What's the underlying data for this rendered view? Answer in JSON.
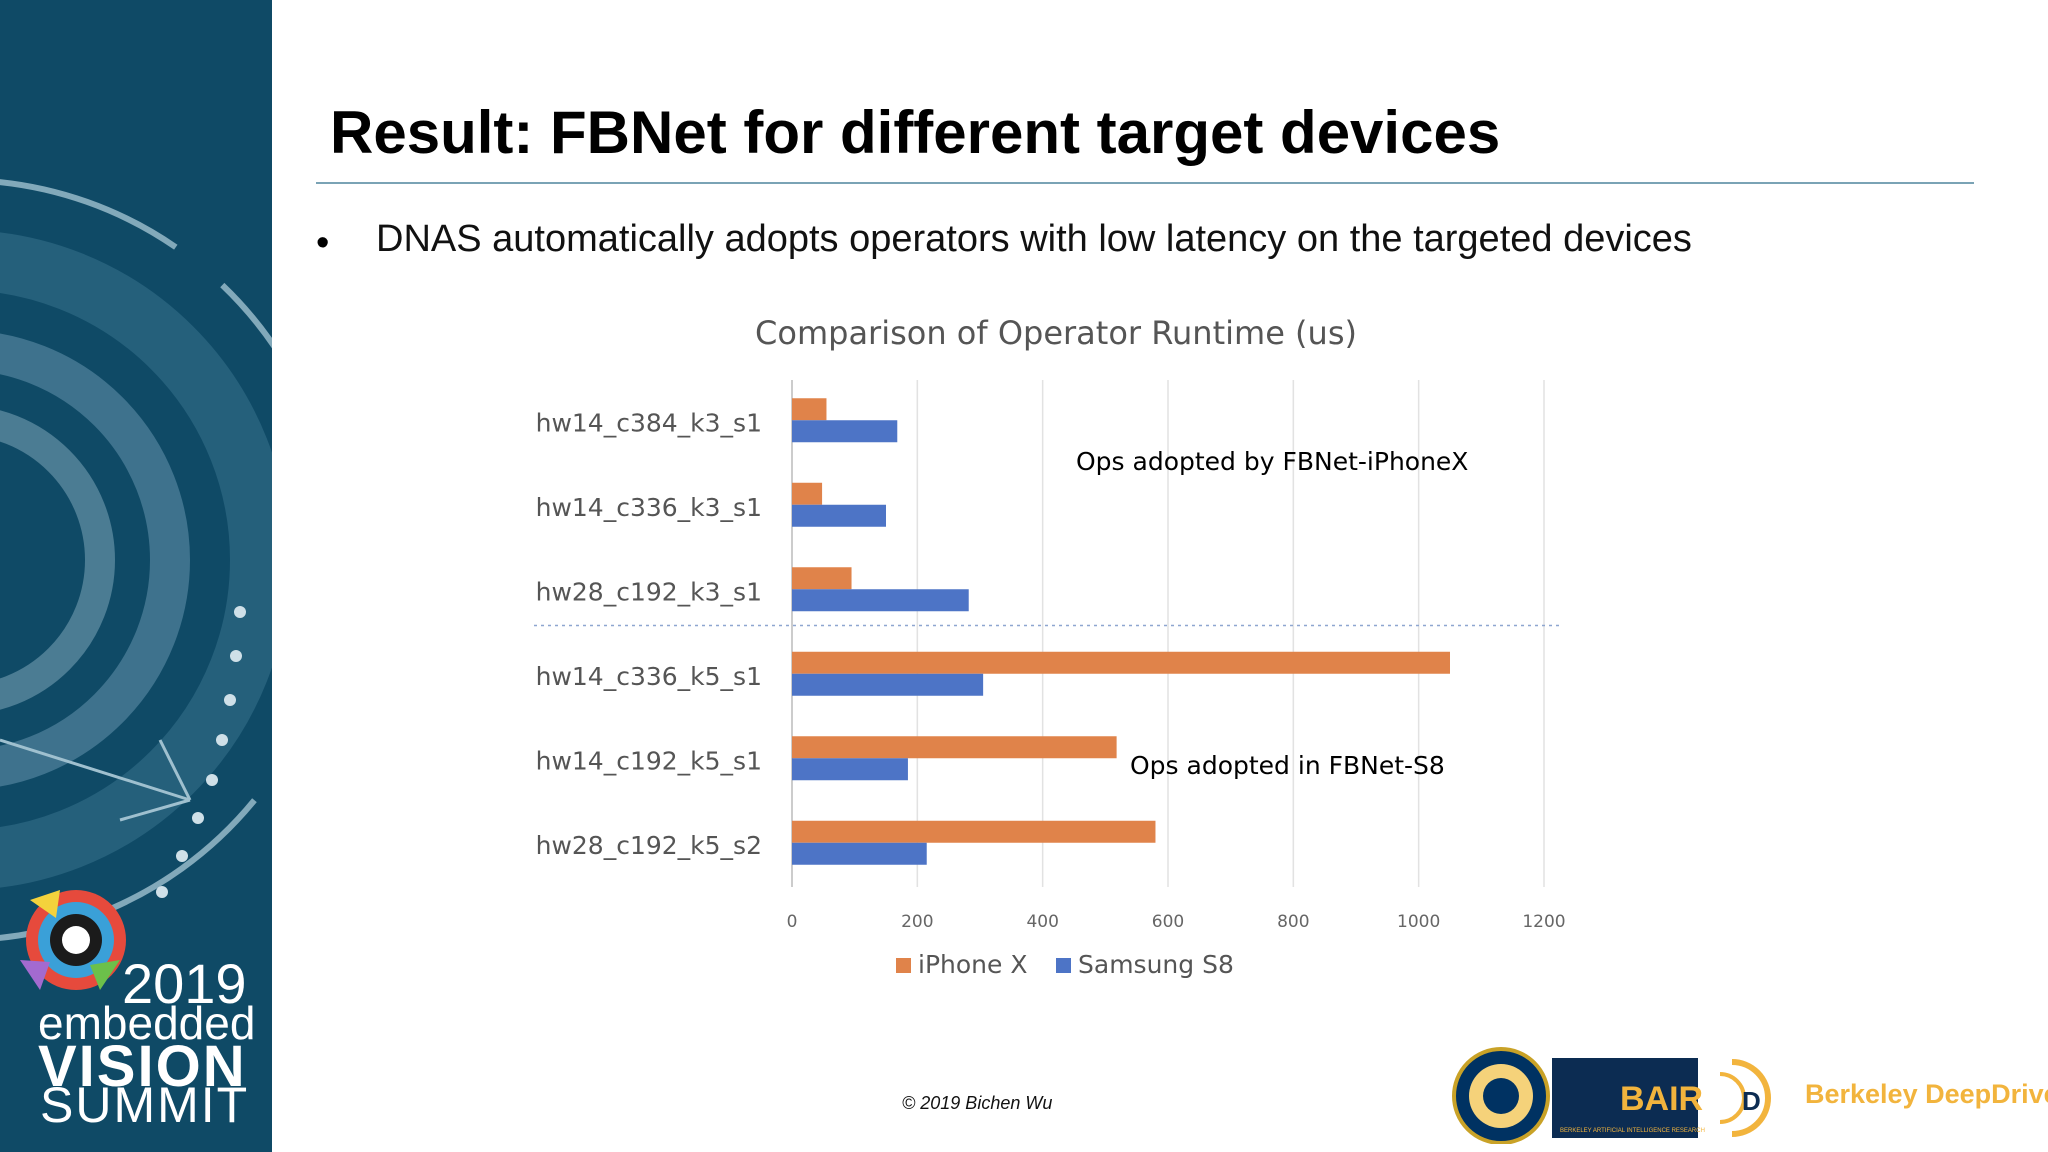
{
  "slide": {
    "title": "Result: FBNet for different target devices",
    "bullet": "DNAS automatically adopts operators with low latency on the targeted devices",
    "copyright": "© 2019 Bichen Wu"
  },
  "sidebar": {
    "year": "2019",
    "embedded": "embedded",
    "vision": "VISION",
    "summit": "SUMMIT"
  },
  "logos": {
    "bair": "BAIR",
    "bair_sub": "BERKELEY ARTIFICIAL INTELLIGENCE RESEARCH",
    "deepdrive": "Berkeley DeepDrive"
  },
  "colors": {
    "iphone": "#e0834a",
    "samsung": "#4d74c6",
    "sidebar": "#0f4a66",
    "accent_gold": "#f2b43d"
  },
  "chart_data": {
    "type": "bar",
    "orientation": "horizontal",
    "title": "Comparison of Operator Runtime (us)",
    "categories": [
      "hw14_c384_k3_s1",
      "hw14_c336_k3_s1",
      "hw28_c192_k3_s1",
      "hw14_c336_k5_s1",
      "hw14_c192_k5_s1",
      "hw28_c192_k5_s2"
    ],
    "series": [
      {
        "name": "iPhone X",
        "values": [
          55,
          48,
          95,
          1050,
          518,
          580
        ]
      },
      {
        "name": "Samsung S8",
        "values": [
          168,
          150,
          282,
          305,
          185,
          215
        ]
      }
    ],
    "xlim": [
      0,
      1200
    ],
    "xticks": [
      "0",
      "200",
      "400",
      "600",
      "800",
      "1000",
      "1200"
    ],
    "grid": true,
    "legend": "bottom",
    "annotations": [
      "Ops adopted by FBNet-iPhoneX",
      "Ops adopted in FBNet-S8"
    ]
  }
}
